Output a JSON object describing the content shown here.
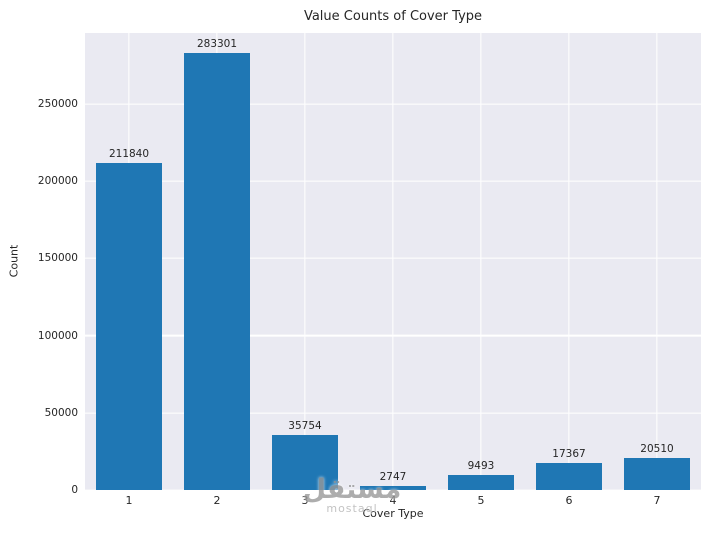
{
  "figure": {
    "watermark": {
      "arabic": "مستقل",
      "latin": "mostaql"
    }
  },
  "chart_data": {
    "type": "bar",
    "title": "Value Counts of Cover Type",
    "xlabel": "Cover Type",
    "ylabel": "Count",
    "categories": [
      "1",
      "2",
      "3",
      "4",
      "5",
      "6",
      "7"
    ],
    "values": [
      211840,
      283301,
      35754,
      2747,
      9493,
      17367,
      20510
    ],
    "bar_labels": [
      "211840",
      "283301",
      "35754",
      "2747",
      "9493",
      "17367",
      "20510"
    ],
    "yticks": [
      0,
      50000,
      100000,
      150000,
      200000,
      250000
    ],
    "ytick_labels": [
      "0",
      "50000",
      "100000",
      "150000",
      "200000",
      "250000"
    ],
    "ylim": [
      0,
      296000
    ],
    "grid": true,
    "legend": "none",
    "bar_color": "#1f77b4",
    "plot_bg": "#eaeaf2"
  }
}
